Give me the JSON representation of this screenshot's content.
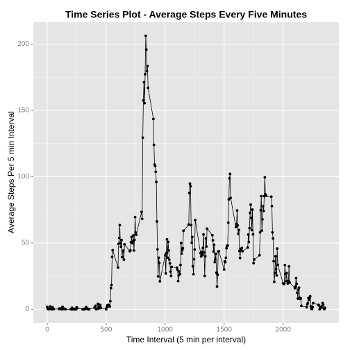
{
  "chart_data": {
    "type": "line",
    "title": "Time Series Plot - Average Steps Every Five Minutes",
    "x_label": "Time Interval (5 min per interval)",
    "y_label": "Average Steps Per 5 min Interval",
    "xlim": [
      -118,
      2473
    ],
    "ylim": [
      -10.3,
      216.5
    ],
    "xticks": [
      0,
      500,
      1000,
      1500,
      2000
    ],
    "yticks": [
      0,
      50,
      100,
      150,
      200
    ],
    "grid": true,
    "color": "#000000",
    "markers": true,
    "x": [
      0,
      5,
      10,
      15,
      20,
      25,
      30,
      35,
      40,
      45,
      50,
      55,
      100,
      105,
      110,
      115,
      120,
      125,
      130,
      135,
      140,
      145,
      150,
      155,
      200,
      205,
      210,
      215,
      220,
      225,
      230,
      235,
      240,
      245,
      250,
      255,
      300,
      305,
      310,
      315,
      320,
      325,
      330,
      335,
      340,
      345,
      350,
      355,
      400,
      405,
      410,
      415,
      420,
      425,
      430,
      435,
      440,
      445,
      450,
      455,
      500,
      505,
      510,
      515,
      520,
      525,
      530,
      535,
      540,
      545,
      550,
      555,
      600,
      605,
      610,
      615,
      620,
      625,
      630,
      635,
      640,
      645,
      650,
      655,
      700,
      705,
      710,
      715,
      720,
      725,
      730,
      735,
      740,
      745,
      750,
      755,
      800,
      805,
      810,
      815,
      820,
      825,
      830,
      835,
      840,
      845,
      850,
      855,
      900,
      905,
      910,
      915,
      920,
      925,
      930,
      935,
      940,
      945,
      950,
      955,
      1000,
      1005,
      1010,
      1015,
      1020,
      1025,
      1030,
      1035,
      1040,
      1045,
      1050,
      1055,
      1100,
      1105,
      1110,
      1115,
      1120,
      1125,
      1130,
      1135,
      1140,
      1145,
      1150,
      1155,
      1200,
      1205,
      1210,
      1215,
      1220,
      1225,
      1230,
      1235,
      1240,
      1245,
      1250,
      1255,
      1300,
      1305,
      1310,
      1315,
      1320,
      1325,
      1330,
      1335,
      1340,
      1345,
      1350,
      1355,
      1400,
      1405,
      1410,
      1415,
      1420,
      1425,
      1430,
      1435,
      1440,
      1445,
      1450,
      1455,
      1500,
      1505,
      1510,
      1515,
      1520,
      1525,
      1530,
      1535,
      1540,
      1545,
      1550,
      1555,
      1600,
      1605,
      1610,
      1615,
      1620,
      1625,
      1630,
      1635,
      1640,
      1645,
      1650,
      1655,
      1700,
      1705,
      1710,
      1715,
      1720,
      1725,
      1730,
      1735,
      1740,
      1745,
      1750,
      1755,
      1800,
      1805,
      1810,
      1815,
      1820,
      1825,
      1830,
      1835,
      1840,
      1845,
      1850,
      1855,
      1900,
      1905,
      1910,
      1915,
      1920,
      1925,
      1930,
      1935,
      1940,
      1945,
      1950,
      1955,
      2000,
      2005,
      2010,
      2015,
      2020,
      2025,
      2030,
      2035,
      2040,
      2045,
      2050,
      2055,
      2100,
      2105,
      2110,
      2115,
      2120,
      2125,
      2130,
      2135,
      2140,
      2145,
      2150,
      2155,
      2200,
      2205,
      2210,
      2215,
      2220,
      2225,
      2230,
      2235,
      2240,
      2245,
      2250,
      2255,
      2300,
      2305,
      2310,
      2315,
      2320,
      2325,
      2330,
      2335,
      2340,
      2345,
      2350,
      2355
    ],
    "values": [
      1.7,
      0.3,
      0.1,
      0.2,
      0.1,
      2.1,
      0.5,
      0.9,
      0,
      1.5,
      0.3,
      0.1,
      0.3,
      0.7,
      0.2,
      0.3,
      0,
      1.1,
      1.8,
      0.2,
      0.2,
      0.4,
      0.3,
      0,
      0,
      0,
      1.1,
      0,
      0,
      0.1,
      0,
      0.2,
      0,
      0,
      1.5,
      0.9,
      0,
      0,
      0,
      0,
      0.2,
      0.6,
      1.6,
      0.6,
      0.5,
      0.1,
      0,
      0,
      1.2,
      0.9,
      2.6,
      0,
      0.3,
      0.4,
      4.1,
      0.7,
      3.5,
      0.8,
      3.1,
      1.1,
      0,
      1.6,
      3.0,
      2.2,
      3.3,
      3.0,
      2.1,
      6.1,
      16.0,
      18.3,
      39.5,
      44.5,
      31.5,
      49.3,
      53.8,
      63.5,
      50.0,
      47.1,
      52.2,
      39.3,
      44.0,
      44.2,
      37.4,
      49.0,
      43.8,
      44.4,
      50.5,
      54.5,
      49.9,
      51.0,
      55.7,
      44.3,
      52.3,
      69.5,
      57.8,
      56.2,
      73.4,
      68.2,
      129.4,
      157.5,
      171.2,
      155.4,
      177.3,
      206.2,
      195.9,
      179.6,
      183.4,
      167.0,
      143.5,
      124.0,
      109.1,
      108.1,
      103.7,
      96.0,
      66.2,
      45.2,
      24.8,
      38.8,
      35.0,
      21.1,
      40.6,
      27.0,
      42.4,
      52.7,
      38.9,
      50.8,
      44.3,
      37.4,
      34.7,
      28.3,
      25.1,
      31.9,
      31.4,
      29.7,
      21.3,
      25.5,
      28.4,
      26.5,
      33.4,
      50.0,
      42.0,
      44.6,
      46.0,
      59.2,
      63.9,
      87.7,
      94.8,
      92.8,
      63.4,
      50.2,
      54.5,
      32.4,
      26.5,
      37.7,
      45.1,
      67.3,
      42.3,
      39.9,
      43.3,
      41.0,
      46.2,
      56.4,
      42.8,
      25.1,
      40.0,
      53.5,
      47.3,
      60.8,
      55.8,
      52.0,
      43.6,
      48.7,
      35.5,
      37.5,
      41.8,
      27.5,
      17.1,
      26.1,
      43.6,
      43.8,
      30.0,
      36.1,
      35.5,
      38.8,
      46.0,
      47.8,
      48.1,
      65.3,
      82.9,
      98.7,
      102.1,
      84.0,
      62.1,
      64.1,
      74.5,
      63.2,
      56.9,
      59.8,
      43.9,
      38.6,
      44.7,
      45.5,
      46.2,
      43.7,
      46.6,
      56.3,
      50.7,
      61.2,
      72.7,
      78.9,
      68.9,
      59.7,
      75.1,
      56.5,
      34.8,
      37.5,
      40.7,
      58.0,
      74.7,
      85.3,
      59.3,
      67.8,
      77.7,
      74.2,
      85.3,
      99.5,
      86.6,
      85.6,
      84.9,
      77.8,
      58.0,
      53.4,
      36.3,
      20.7,
      27.4,
      40.0,
      30.2,
      25.5,
      45.7,
      33.5,
      19.6,
      19.0,
      19.3,
      33.3,
      26.8,
      21.2,
      27.3,
      21.3,
      19.5,
      21.3,
      32.3,
      20.2,
      15.9,
      17.2,
      23.5,
      19.2,
      12.5,
      8.0,
      14.7,
      16.3,
      8.7,
      7.8,
      8.1,
      2.6,
      1.5,
      3.7,
      4.8,
      8.5,
      7.1,
      8.7,
      9.8,
      2.2,
      0.3,
      0.1,
      1.6,
      4.6,
      3.3,
      2.8,
      0,
      0.8,
      1.0,
      1.6,
      2.6,
      4.7,
      3.3,
      0.6,
      0.2,
      1.1
    ]
  }
}
